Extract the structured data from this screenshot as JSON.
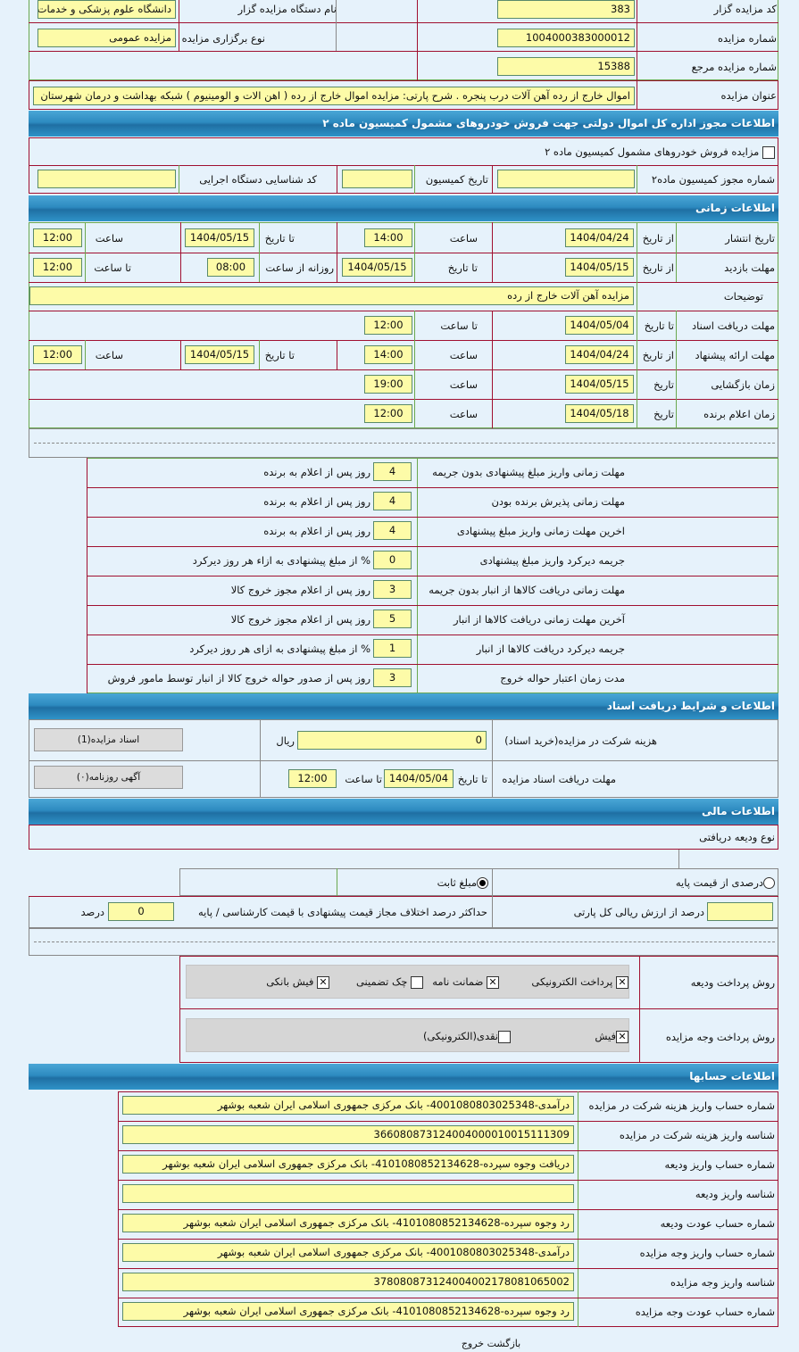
{
  "general": {
    "organizer_code_label": "کد مزایده گزار",
    "organizer_code": "383",
    "organizer_name_label": "نام دستگاه مزایده گزار",
    "organizer_name": "دانشگاه علوم پزشکی و خدمات",
    "auction_number_label": "شماره مزایده",
    "auction_number": "1004000383000012",
    "auction_type_label": "نوع برگزاری مزایده",
    "auction_type": "مزایده عمومی",
    "reference_number_label": "شماره مزایده مرجع",
    "reference_number": "15388",
    "title_label": "عنوان مزایده",
    "title": "اموال خارج از رده آهن آلات درب پنجره . شرح پارتی: مزایده اموال خارج از رده ( اهن الات و الومینیوم ) شبکه بهداشت و درمان شهرستان"
  },
  "permit": {
    "header": "اطلاعات مجوز اداره کل اموال دولتی جهت فروش خودروهای مشمول کمیسیون ماده ۲",
    "vehicle_checkbox_label": "مزایده فروش خودروهای مشمول کمیسیون ماده ۲",
    "vehicle_checked": false,
    "permit_number_label": "شماره مجوز کمیسیون ماده۲",
    "permit_number": "",
    "commission_date_label": "تاریخ کمیسیون",
    "commission_date": "",
    "agency_id_label": "کد شناسایی دستگاه اجرایی",
    "agency_id": ""
  },
  "timing": {
    "header": "اطلاعات زمانی",
    "rows": [
      {
        "label": "تاریخ انتشار",
        "sub": "از تاریخ",
        "date": "1404/04/24",
        "l2": "ساعت",
        "time": "14:00",
        "l3": "تا تاریخ",
        "date2": "1404/05/15",
        "l4": "ساعت",
        "time2": "12:00"
      },
      {
        "label": "مهلت بازدید",
        "sub": "از تاریخ",
        "date": "1404/05/15",
        "l2": "تا تاریخ",
        "time": "1404/05/15",
        "l3": "روزانه از ساعت",
        "date2": "08:00",
        "l4": "تا ساعت",
        "time2": "12:00"
      },
      {
        "label": "توضیحات",
        "desc": "مزایده آهن آلات خارج از رده"
      },
      {
        "label": "مهلت دریافت اسناد",
        "sub": "تا تاریخ",
        "date": "1404/05/04",
        "l2": "تا ساعت",
        "time": "12:00"
      },
      {
        "label": "مهلت ارائه پیشنهاد",
        "sub": "از تاریخ",
        "date": "1404/04/24",
        "l2": "ساعت",
        "time": "14:00",
        "l3": "تا تاریخ",
        "date2": "1404/05/15",
        "l4": "ساعت",
        "time2": "12:00"
      },
      {
        "label": "زمان بازگشایی",
        "sub": "تاریخ",
        "date": "1404/05/15",
        "l2": "ساعت",
        "time": "19:00"
      },
      {
        "label": "زمان اعلام برنده",
        "sub": "تاریخ",
        "date": "1404/05/18",
        "l2": "ساعت",
        "time": "12:00"
      }
    ]
  },
  "terms": [
    {
      "label": "مهلت زمانی واریز مبلغ پیشنهادی بدون جریمه",
      "value": "4",
      "unit": "روز پس از اعلام به برنده"
    },
    {
      "label": "مهلت زمانی پذیرش برنده بودن",
      "value": "4",
      "unit": "روز پس از اعلام به برنده"
    },
    {
      "label": "اخرین مهلت زمانی واریز مبلغ پیشنهادی",
      "value": "4",
      "unit": "روز پس از اعلام به برنده"
    },
    {
      "label": "جریمه دیرکرد واریز مبلغ پیشنهادی",
      "value": "0",
      "unit": "% از مبلغ پیشنهادی به ازاء هر روز دیرکرد"
    },
    {
      "label": "مهلت زمانی دریافت کالاها از انبار بدون جریمه",
      "value": "3",
      "unit": "روز پس از اعلام مجوز خروج کالا"
    },
    {
      "label": "آخرین مهلت زمانی دریافت کالاها از انبار",
      "value": "5",
      "unit": "روز پس از اعلام مجوز خروج کالا"
    },
    {
      "label": "جریمه دیرکرد دریافت کالاها از انبار",
      "value": "1",
      "unit": "% از مبلغ پیشنهادی به ازای هر روز دیرکرد"
    },
    {
      "label": "مدت زمان اعتبار حواله خروج",
      "value": "3",
      "unit": "روز پس از صدور حواله خروج کالا از انبار توسط مامور فروش"
    }
  ],
  "documents": {
    "header": "اطلاعات و شرایط دریافت اسناد",
    "fee_label": "هزینه شرکت در مزایده(خرید اسناد)",
    "fee": "0",
    "fee_unit": "ریال",
    "docs_button": "اسناد مزایده(1)",
    "deadline_label": "مهلت دریافت اسناد مزایده",
    "to_date_label": "تا تاریخ",
    "to_date": "1404/05/04",
    "to_time_label": "تا ساعت",
    "to_time": "12:00",
    "ad_button": "آگهی روزنامه(۰)"
  },
  "finance": {
    "header": "اطلاعات مالی",
    "deposit_type_label": "نوع ودیعه دریافتی",
    "radio_percent": "درصدی از قیمت پایه",
    "radio_fixed": "مبلغ ثابت",
    "selected": "fixed",
    "percent_value": "",
    "percent_label": "درصد از ارزش ریالی کل پارتی",
    "max_diff_label": "حداکثر درصد اختلاف مجاز قیمت پیشنهادی با قیمت کارشناسی / پایه",
    "max_diff": "0",
    "max_diff_unit": "درصد",
    "deposit_method_label": "روش پرداخت ودیعه",
    "deposit_methods": [
      {
        "label": "پرداخت الکترونیکی",
        "checked": true
      },
      {
        "label": "ضمانت نامه",
        "checked": true
      },
      {
        "label": "چک تضمینی",
        "checked": false
      },
      {
        "label": "فیش بانکی",
        "checked": true
      }
    ],
    "payment_method_label": "روش پرداخت وجه مزایده",
    "payment_methods": [
      {
        "label": "فیش",
        "checked": true
      },
      {
        "label": "نقدی(الکترونیکی)",
        "checked": false
      }
    ]
  },
  "accounts": {
    "header": "اطلاعات حسابها",
    "rows": [
      {
        "label": "شماره حساب واریز هزینه شرکت در مزایده",
        "value": "درآمدی-4001080803025348- بانک مرکزی جمهوری اسلامی ایران شعبه بوشهر"
      },
      {
        "label": "شناسه واریز هزینه شرکت در مزایده",
        "value": "366080873124004000010015111309"
      },
      {
        "label": "شماره حساب واریز ودیعه",
        "value": "دریافت وجوه سپرده-4101080852134628- بانک مرکزی جمهوری اسلامی ایران شعبه بوشهر"
      },
      {
        "label": "شناسه واریز ودیعه",
        "value": ""
      },
      {
        "label": "شماره حساب عودت ودیعه",
        "value": "رد وجوه سپرده-4101080852134628- بانک مرکزی جمهوری اسلامی ایران شعبه بوشهر"
      },
      {
        "label": "شماره حساب واریز وجه مزایده",
        "value": "درآمدی-4001080803025348- بانک مرکزی جمهوری اسلامی ایران شعبه بوشهر"
      },
      {
        "label": "شناسه واریز وجه مزایده",
        "value": "378080873124004002178081065002"
      },
      {
        "label": "شماره حساب عودت وجه مزایده",
        "value": "رد وجوه سپرده-4101080852134628- بانک مرکزی جمهوری اسلامی ایران شعبه بوشهر"
      }
    ]
  },
  "footer": {
    "back": "بازگشت",
    "exit": "خروج"
  }
}
